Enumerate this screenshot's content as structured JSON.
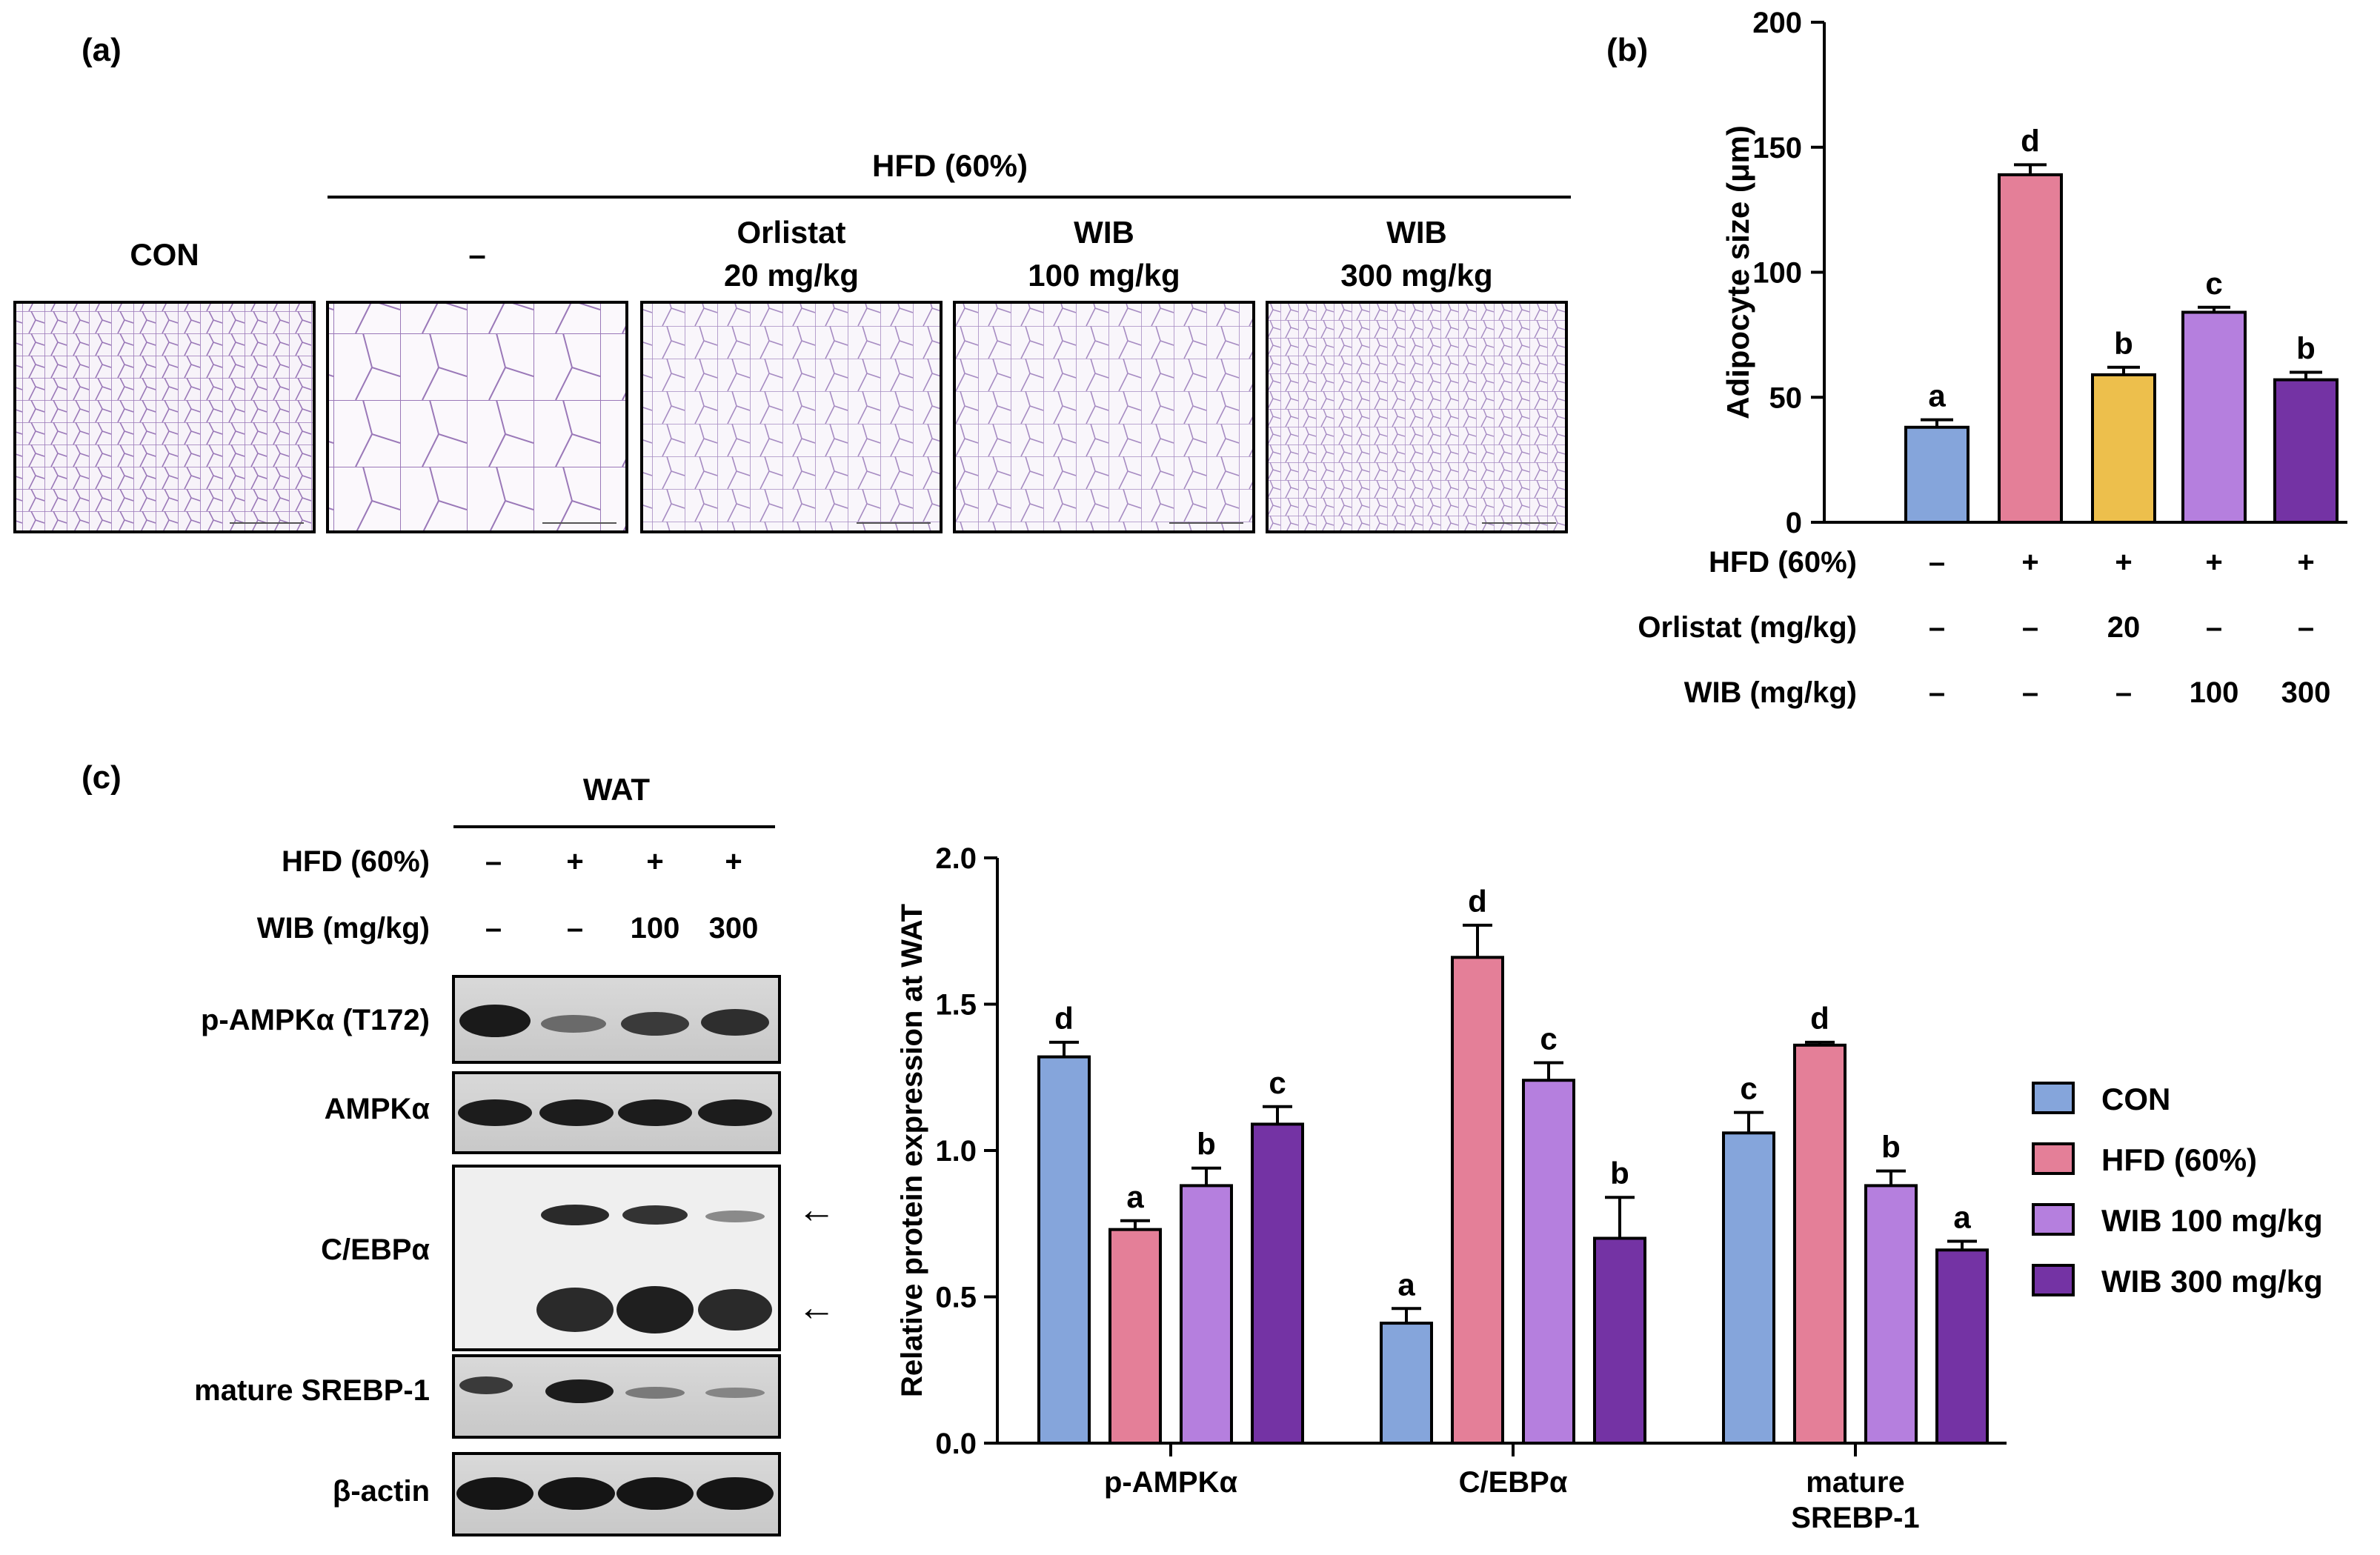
{
  "panels": {
    "a": "(a)",
    "b": "(b)",
    "c": "(c)"
  },
  "colors": {
    "CON": "#85a5db",
    "HFD": "#e47f98",
    "Orlistat": "#edbf4c",
    "WIB100": "#b57fde",
    "WIB300": "#7433a4",
    "histo_bg": "#f7f3f9",
    "histo_line": "#9a78b8"
  },
  "panel_a": {
    "hfd_header": "HFD (60%)",
    "groups": [
      {
        "line1": "CON",
        "line2": ""
      },
      {
        "line1": "–",
        "line2": ""
      },
      {
        "line1": "Orlistat",
        "line2": "20 mg/kg"
      },
      {
        "line1": "WIB",
        "line2": "100 mg/kg"
      },
      {
        "line1": "WIB",
        "line2": "300 mg/kg"
      }
    ]
  },
  "panel_c_blot": {
    "tissue": "WAT",
    "rows": [
      {
        "label": "HFD (60%)",
        "values": [
          "–",
          "+",
          "+",
          "+"
        ]
      },
      {
        "label": "WIB (mg/kg)",
        "values": [
          "–",
          "–",
          "100",
          "300"
        ]
      }
    ],
    "proteins": [
      "p-AMPKα (T172)",
      "AMPKα",
      "C/EBPα",
      "mature SREBP-1",
      "β-actin"
    ],
    "arrows": [
      "←",
      "←"
    ]
  },
  "chart_data": [
    {
      "type": "bar",
      "panel": "b",
      "title": "",
      "ylabel": "Adipocyte size (μm)",
      "ylim": [
        0,
        200
      ],
      "yticks": [
        0,
        50,
        100,
        150,
        200
      ],
      "series": [
        {
          "name": "CON",
          "value": 38,
          "error": 3,
          "letter": "a",
          "color": "#85a5db"
        },
        {
          "name": "HFD (60%)",
          "value": 139,
          "error": 4,
          "letter": "d",
          "color": "#e47f98"
        },
        {
          "name": "Orlistat 20 mg/kg",
          "value": 59,
          "error": 3,
          "letter": "b",
          "color": "#edbf4c"
        },
        {
          "name": "WIB 100 mg/kg",
          "value": 84,
          "error": 2,
          "letter": "c",
          "color": "#b57fde"
        },
        {
          "name": "WIB 300 mg/kg",
          "value": 57,
          "error": 3,
          "letter": "b",
          "color": "#7433a4"
        }
      ],
      "table_rows": [
        {
          "label": "HFD (60%)",
          "values": [
            "–",
            "+",
            "+",
            "+",
            "+"
          ]
        },
        {
          "label": "Orlistat (mg/kg)",
          "values": [
            "–",
            "–",
            "20",
            "–",
            "–"
          ]
        },
        {
          "label": "WIB (mg/kg)",
          "values": [
            "–",
            "–",
            "–",
            "100",
            "300"
          ]
        }
      ]
    },
    {
      "type": "bar",
      "panel": "c",
      "title": "",
      "ylabel": "Relative protein expression at WAT",
      "ylim": [
        0,
        2.0
      ],
      "yticks": [
        "0.0",
        "0.5",
        "1.0",
        "1.5",
        "2.0"
      ],
      "categories": [
        {
          "line1": "p-AMPKα",
          "line2": ""
        },
        {
          "line1": "C/EBPα",
          "line2": ""
        },
        {
          "line1": "mature",
          "line2": "SREBP-1"
        }
      ],
      "series": [
        {
          "name": "CON",
          "color": "#85a5db",
          "values": [
            1.32,
            0.41,
            1.06
          ],
          "errors": [
            0.05,
            0.05,
            0.07
          ],
          "letters": [
            "d",
            "a",
            "c"
          ]
        },
        {
          "name": "HFD (60%)",
          "color": "#e47f98",
          "values": [
            0.73,
            1.66,
            1.36
          ],
          "errors": [
            0.03,
            0.11,
            0.01
          ],
          "letters": [
            "a",
            "d",
            "d"
          ]
        },
        {
          "name": "WIB 100 mg/kg",
          "color": "#b57fde",
          "values": [
            0.88,
            1.24,
            0.88
          ],
          "errors": [
            0.06,
            0.06,
            0.05
          ],
          "letters": [
            "b",
            "c",
            "b"
          ]
        },
        {
          "name": "WIB 300 mg/kg",
          "color": "#7433a4",
          "values": [
            1.09,
            0.7,
            0.66
          ],
          "errors": [
            0.06,
            0.14,
            0.03
          ],
          "letters": [
            "c",
            "b",
            "a"
          ]
        }
      ],
      "legend": [
        "CON",
        "HFD (60%)",
        "WIB 100 mg/kg",
        "WIB 300 mg/kg"
      ]
    }
  ]
}
